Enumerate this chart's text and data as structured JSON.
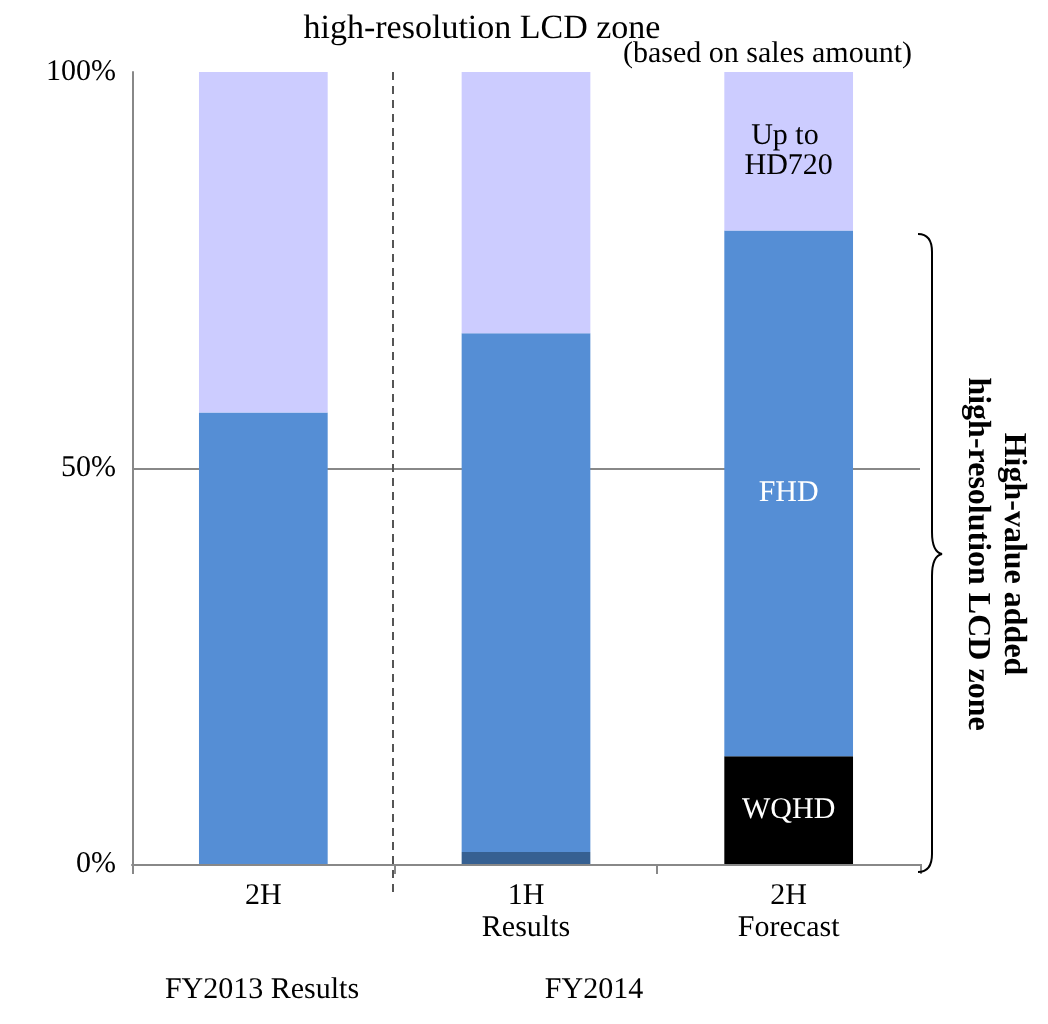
{
  "chart_data": {
    "type": "bar",
    "title": "high-resolution LCD zone",
    "stacked": true,
    "categories": [
      "2H",
      "1H\nResults",
      "2H\nForecast"
    ],
    "series": [
      {
        "name": "WQHD",
        "color": "#000000",
        "values": [
          0,
          0,
          13.6
        ]
      },
      {
        "color": "#366092",
        "values": [
          0,
          1.5,
          0
        ]
      },
      {
        "name": "FHD",
        "color": "#558ed5",
        "values": [
          57,
          65.5,
          66.4
        ]
      },
      {
        "name": "Up to HD720",
        "color": "#ccccff",
        "values": [
          43,
          33,
          20
        ]
      }
    ],
    "ylim": [
      0,
      100
    ],
    "yticks": [
      {
        "value": 0,
        "label": "0%"
      },
      {
        "value": 50,
        "label": "50%"
      },
      {
        "value": 100,
        "label": "100%"
      }
    ],
    "legend": false,
    "ref_lines": [
      {
        "axis": "y",
        "value": 50,
        "color": "#888888"
      }
    ],
    "annotations": [
      "(based on sales amount)",
      "FY2013 Results",
      "FY2014",
      "High-value added\nhigh-resolution LCD zone"
    ]
  }
}
